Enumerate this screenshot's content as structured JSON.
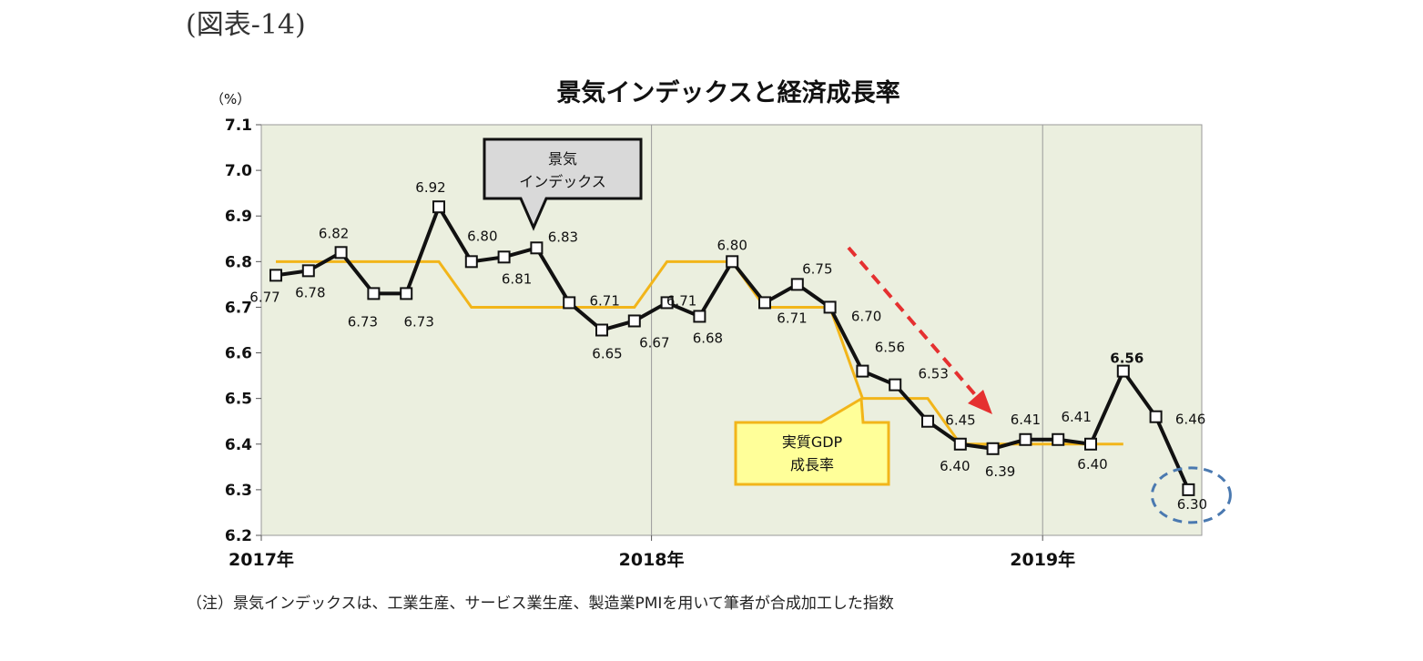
{
  "figure_label": "(図表-14)",
  "unit_label": "（%）",
  "note": "（注）景気インデックスは、工業生産、サービス業生産、製造業PMIを用いて筆者が合成加工した指数",
  "callouts": {
    "index": [
      "景気",
      "インデックス"
    ],
    "gdp": [
      "実質GDP",
      "成長率"
    ]
  },
  "colors": {
    "plot_bg": "#ebefdf",
    "index_line": "#111111",
    "gdp_line": "#f2b51a",
    "arrow": "#e53030",
    "highlight_circle": "#4a79b0",
    "callout_index_bg": "#d9d9d9",
    "callout_gdp_bg": "#ffff99",
    "callout_gdp_border": "#f2b51a"
  },
  "chart_data": {
    "type": "line",
    "title": "景気インデックスと経済成長率",
    "ylabel": "（%）",
    "ylim": [
      6.2,
      7.1
    ],
    "yticks": [
      "6.2",
      "6.3",
      "6.4",
      "6.5",
      "6.6",
      "6.7",
      "6.8",
      "6.9",
      "7.0",
      "7.1"
    ],
    "x_tick_labels": [
      "2017年",
      "2018年",
      "2019年"
    ],
    "x_tick_months": [
      0,
      12,
      24
    ],
    "grid": "vertical lines at year boundaries",
    "series": [
      {
        "name": "景気インデックス",
        "months": [
          0,
          1,
          2,
          3,
          4,
          5,
          6,
          7,
          8,
          9,
          10,
          11,
          12,
          13,
          14,
          15,
          16,
          17,
          18,
          19,
          20,
          21,
          22,
          23,
          24,
          25,
          26,
          27,
          28
        ],
        "values": [
          6.77,
          6.78,
          6.82,
          6.73,
          6.73,
          6.92,
          6.8,
          6.81,
          6.83,
          6.71,
          6.65,
          6.67,
          6.71,
          6.68,
          6.8,
          6.71,
          6.75,
          6.7,
          6.56,
          6.53,
          6.45,
          6.4,
          6.39,
          6.41,
          6.41,
          6.4,
          6.56,
          6.46,
          6.3
        ],
        "labels": [
          "6.77",
          "6.78",
          "6.82",
          "6.73",
          "6.73",
          "6.92",
          "6.80",
          "6.81",
          "6.83",
          "6.71",
          "6.65",
          "6.67",
          "6.71",
          "6.68",
          "6.80",
          "6.71",
          "6.75",
          "6.70",
          "6.56",
          "6.53",
          "6.45",
          "6.40",
          "6.39",
          "6.41",
          "6.41",
          "6.40",
          "6.56",
          "6.46",
          "6.30"
        ]
      },
      {
        "name": "実質GDP成長率",
        "quarters": [
          {
            "start": 0,
            "end": 5,
            "value": 6.8
          },
          {
            "start": 6,
            "end": 11,
            "value": 6.7
          },
          {
            "start": 12,
            "end": 14,
            "value": 6.8
          },
          {
            "start": 15,
            "end": 17,
            "value": 6.7
          },
          {
            "start": 18,
            "end": 20,
            "value": 6.5
          },
          {
            "start": 21,
            "end": 26,
            "value": 6.4
          }
        ]
      }
    ],
    "highlight": {
      "month": 28,
      "value": 6.3
    }
  }
}
